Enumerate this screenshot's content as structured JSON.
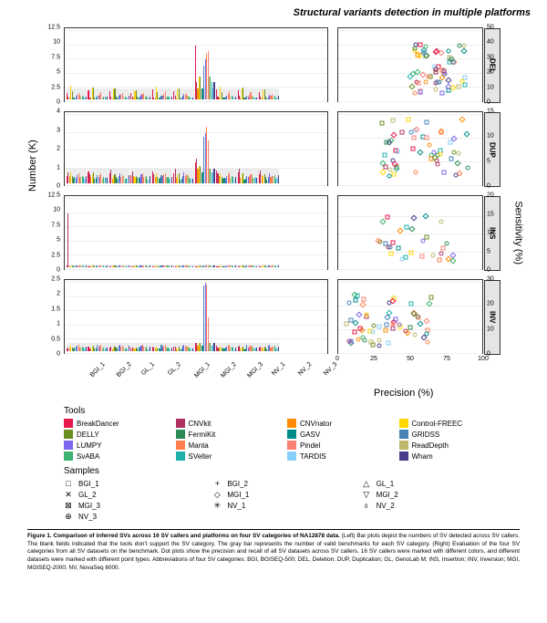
{
  "page_title": "Structural variants detection in multiple platforms",
  "axes": {
    "y_left": "Number (K)",
    "y_right": "Sensitivity (%)",
    "x_right": "Precision (%)"
  },
  "panels": [
    {
      "label": "DEL",
      "y_left": {
        "lim": [
          0,
          12.5
        ],
        "ticks": [
          0,
          2.5,
          5.0,
          7.5,
          10.0,
          12.5
        ]
      },
      "y_right": {
        "lim": [
          0,
          50
        ],
        "ticks": [
          0,
          10,
          20,
          30,
          40,
          50
        ]
      },
      "bars": {
        "series": "bars_del"
      },
      "scatter": {
        "series": "scatter_del"
      }
    },
    {
      "label": "DUP",
      "y_left": {
        "lim": [
          0,
          4.0
        ],
        "ticks": [
          0,
          1.0,
          2.0,
          3.0,
          4.0
        ]
      },
      "y_right": {
        "lim": [
          0,
          15
        ],
        "ticks": [
          0,
          5,
          10,
          15
        ]
      },
      "bars": {
        "series": "bars_dup"
      },
      "scatter": {
        "series": "scatter_dup"
      }
    },
    {
      "label": "INS",
      "y_left": {
        "lim": [
          0,
          12.5
        ],
        "ticks": [
          0,
          2.5,
          5.0,
          7.5,
          10.0,
          12.5
        ]
      },
      "y_right": {
        "lim": [
          0,
          20
        ],
        "ticks": [
          0,
          5,
          10,
          15,
          20
        ]
      },
      "bars": {
        "series": "bars_ins"
      },
      "scatter": {
        "series": "scatter_ins"
      }
    },
    {
      "label": "INV",
      "y_left": {
        "lim": [
          0,
          2.5
        ],
        "ticks": [
          0,
          0.5,
          1.0,
          1.5,
          2.0,
          2.5
        ]
      },
      "y_right": {
        "lim": [
          0,
          30
        ],
        "ticks": [
          0,
          10,
          20,
          30
        ]
      },
      "bars": {
        "series": "bars_inv"
      },
      "scatter": {
        "series": "scatter_inv"
      }
    }
  ],
  "x_categories": [
    "BGI_1",
    "BGI_2",
    "GL_1",
    "GL_2",
    "MGI_1",
    "MGI_2",
    "MGI_3",
    "NV_1",
    "NV_2",
    "NV_3"
  ],
  "x_scatter_ticks": [
    0,
    25,
    50,
    75,
    100
  ],
  "tools": [
    {
      "name": "BreakDancer",
      "color": "#e6194b"
    },
    {
      "name": "CNVkit",
      "color": "#b03060"
    },
    {
      "name": "CNVnator",
      "color": "#ff8c00"
    },
    {
      "name": "Control-FREEC",
      "color": "#ffd700"
    },
    {
      "name": "DELLY",
      "color": "#6b8e23"
    },
    {
      "name": "FermiKit",
      "color": "#2e8b57"
    },
    {
      "name": "GASV",
      "color": "#008b8b"
    },
    {
      "name": "GRIDSS",
      "color": "#4682b4"
    },
    {
      "name": "LUMPY",
      "color": "#7b68ee"
    },
    {
      "name": "Manta",
      "color": "#ff7f50"
    },
    {
      "name": "Pindel",
      "color": "#fa8072"
    },
    {
      "name": "ReadDepth",
      "color": "#bdb76b"
    },
    {
      "name": "SvABA",
      "color": "#3cb371"
    },
    {
      "name": "SVelter",
      "color": "#20b2aa"
    },
    {
      "name": "TARDIS",
      "color": "#87cefa"
    },
    {
      "name": "Wham",
      "color": "#483d8b"
    }
  ],
  "samples": [
    {
      "name": "BGI_1",
      "marker": "□"
    },
    {
      "name": "BGI_2",
      "marker": "+"
    },
    {
      "name": "GL_1",
      "marker": "△"
    },
    {
      "name": "GL_2",
      "marker": "✕"
    },
    {
      "name": "MGI_1",
      "marker": "◇"
    },
    {
      "name": "MGI_2",
      "marker": "▽"
    },
    {
      "name": "MGI_3",
      "marker": "⊠"
    },
    {
      "name": "NV_1",
      "marker": "✳"
    },
    {
      "name": "NV_2",
      "marker": "⬨"
    },
    {
      "name": "NV_3",
      "marker": "⊕"
    }
  ],
  "bars_del_pattern": [
    1.5,
    0.5,
    0.3,
    2,
    1.8,
    0.4,
    0.3,
    0.6,
    0.8,
    1.0,
    1.2,
    0.5,
    0.6,
    0.4,
    0.3,
    0.5
  ],
  "bars_del_mgi3": [
    9.5,
    3,
    2,
    4,
    4,
    2,
    2,
    6,
    7,
    8,
    8.5,
    4,
    4,
    3,
    2,
    3
  ],
  "bars_dup_pattern": [
    0.6,
    0.7,
    0.4,
    0.5,
    0.5,
    0.3,
    0.3,
    0.4,
    0.5,
    0.5,
    0.5,
    0.4,
    0.4,
    0.3,
    0.3,
    0.4
  ],
  "bars_dup_mgi3": [
    1.2,
    1.4,
    0.8,
    1.0,
    1.0,
    0.6,
    0.6,
    2.6,
    2.8,
    3.2,
    2.4,
    0.8,
    0.8,
    0.6,
    0.6,
    0.8
  ],
  "bars_ins_pattern": [
    0.2,
    0.2,
    0.15,
    0.3,
    0.3,
    0.2,
    0.2,
    0.3,
    0.3,
    0.3,
    0.3,
    0.3,
    0.3,
    0.2,
    0.2,
    0.3
  ],
  "bars_ins_bgi1": [
    0.3,
    9.5,
    0.2,
    0.3,
    0.3,
    0.2,
    0.2,
    0.3,
    0.3,
    0.3,
    0.3,
    0.3,
    0.3,
    0.2,
    0.2,
    0.3
  ],
  "bars_inv_pattern": [
    0.15,
    0.15,
    0.1,
    0.15,
    0.15,
    0.1,
    0.1,
    0.2,
    0.2,
    0.2,
    0.2,
    0.15,
    0.15,
    0.1,
    0.1,
    0.15
  ],
  "bars_inv_mgi3": [
    0.3,
    0.3,
    0.2,
    0.3,
    0.3,
    0.2,
    0.2,
    2.3,
    2.4,
    2.35,
    1.2,
    0.3,
    0.3,
    0.2,
    0.2,
    0.3
  ],
  "gray_heights": {
    "del": 2.0,
    "dup": 0.8,
    "ins": 0.5,
    "inv": 0.3
  },
  "scatter_seed": {
    "del": {
      "x": [
        50,
        90
      ],
      "y": [
        5,
        40
      ],
      "n": 60
    },
    "dup": {
      "x": [
        30,
        90
      ],
      "y": [
        2,
        14
      ],
      "n": 55
    },
    "ins": {
      "x": [
        25,
        80
      ],
      "y": [
        2,
        16
      ],
      "n": 30
    },
    "inv": {
      "x": [
        5,
        65
      ],
      "y": [
        2,
        25
      ],
      "n": 60
    }
  },
  "caption": {
    "bold": "Figure 1. Comparison of inferred SVs across 16 SV callers and platforms on four SV categories of NA12878 data.",
    "body": " (Left) Bar plots depict the numbers of SV detected across SV callers. The blank fields indicated that the tools don't support the SV category. The gray bar represents the number of valid benchmarks for each SV category. (Right) Evaluation of the four SV categories from all SV datasets on the benchmark. Dot plots show the precision and recall of all SV datasets across SV callers. 16 SV callers were marked with different colors, and different datasets were marked with different point types. Abbreviations of four SV categories: BGI, BGISEQ-500; DEL, Deletion; DUP, Duplication; GL, GenoLab M; INS, Insertion; INV, Inversion; MGI, MGISEQ-2000; NV, NovaSeq 6000."
  },
  "legend_titles": {
    "tools": "Tools",
    "samples": "Samples"
  },
  "colors": {
    "background": "#ffffff",
    "text": "#000000",
    "panel_border": "#333333",
    "strip_bg": "#e5e5e5",
    "gray_bar": "rgba(180,180,180,0.25)",
    "grid": "#eeeeee"
  }
}
